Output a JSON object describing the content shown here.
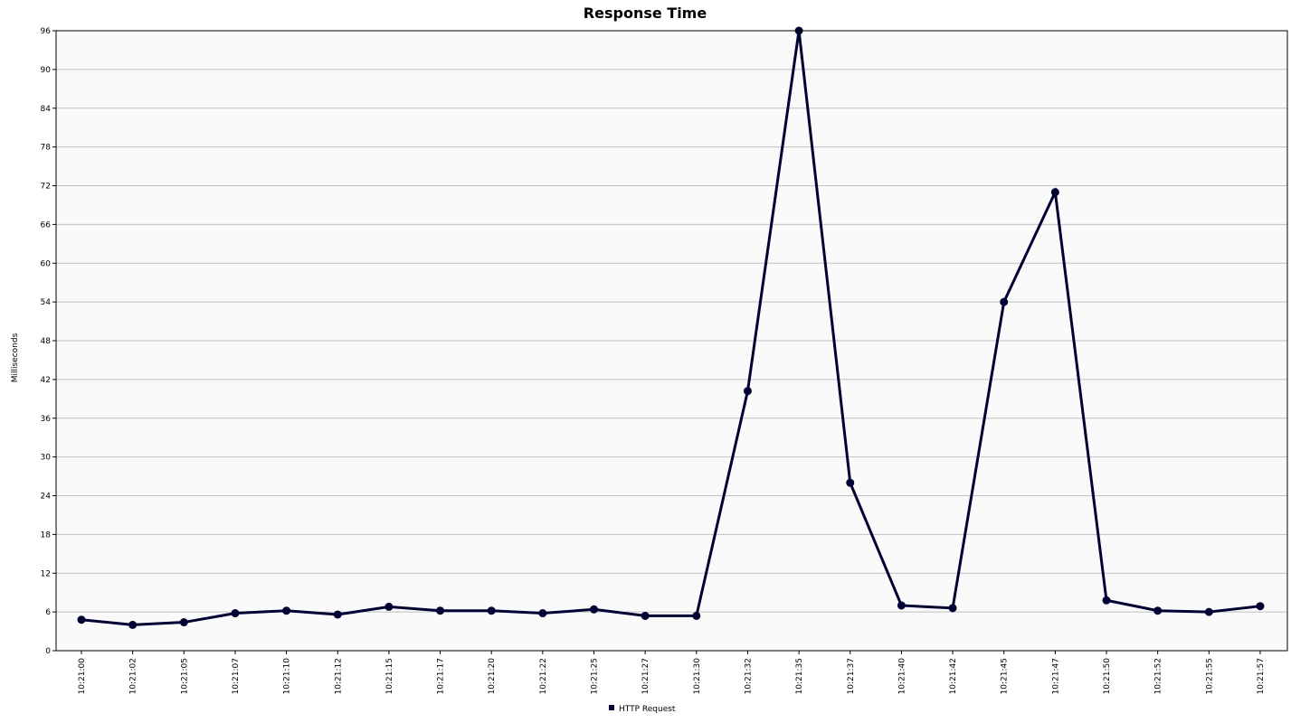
{
  "chart_data": {
    "type": "line",
    "title": "Response Time",
    "xlabel": "",
    "ylabel": "Milliseconds",
    "ylim": [
      0,
      96
    ],
    "yticks": [
      0,
      6,
      12,
      18,
      24,
      30,
      36,
      42,
      48,
      54,
      60,
      66,
      72,
      78,
      84,
      90,
      96
    ],
    "grid": true,
    "legend_position": "bottom",
    "categories": [
      "10:21:00",
      "10:21:02",
      "10:21:05",
      "10:21:07",
      "10:21:10",
      "10:21:12",
      "10:21:15",
      "10:21:17",
      "10:21:20",
      "10:21:22",
      "10:21:25",
      "10:21:27",
      "10:21:30",
      "10:21:32",
      "10:21:35",
      "10:21:37",
      "10:21:40",
      "10:21:42",
      "10:21:45",
      "10:21:47",
      "10:21:50",
      "10:21:52",
      "10:21:55",
      "10:21:57"
    ],
    "series": [
      {
        "name": "HTTP Request",
        "color": "#000033",
        "values": [
          4.8,
          4.0,
          4.4,
          5.8,
          6.2,
          5.6,
          6.8,
          6.2,
          6.2,
          5.8,
          6.4,
          5.4,
          5.4,
          40.2,
          96.0,
          26.0,
          7.0,
          6.6,
          54.0,
          71.0,
          7.8,
          6.2,
          6.0,
          6.9
        ]
      }
    ]
  },
  "colors": {
    "plot_background": "#fafafa",
    "grid": "#c0c0c0",
    "axis": "#000000",
    "line": "#000033"
  }
}
